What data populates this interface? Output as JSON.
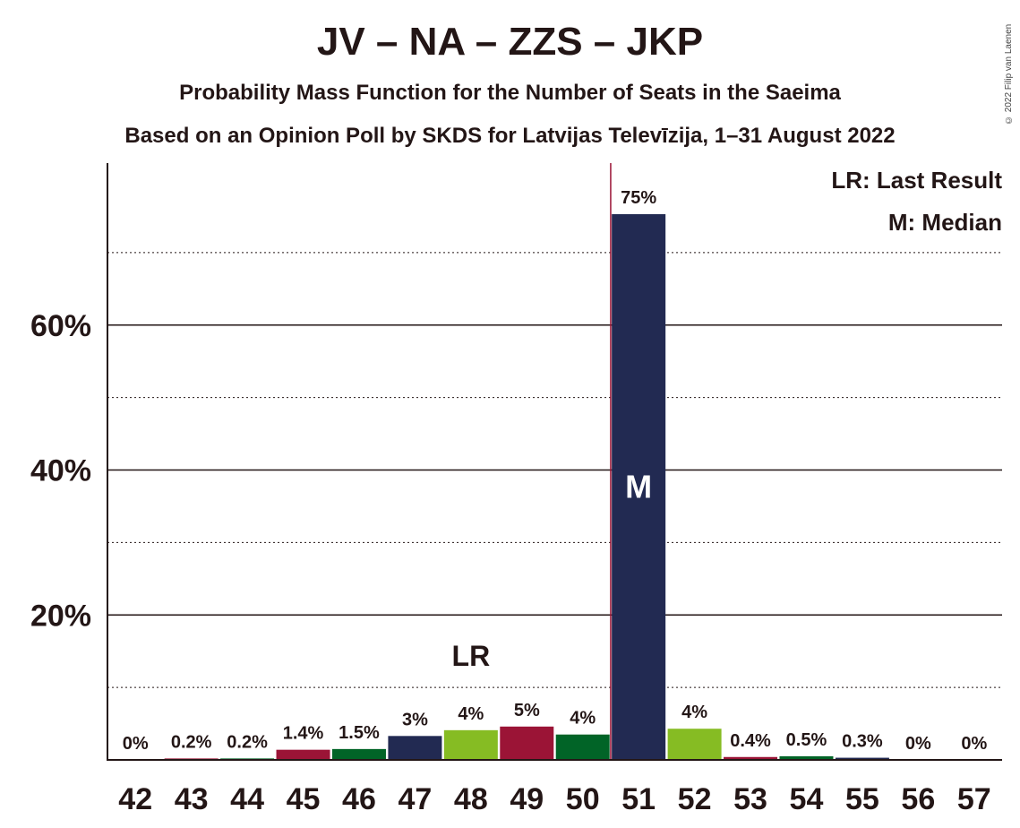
{
  "chart_data": {
    "type": "bar",
    "title": "JV – NA – ZZS – JKP",
    "subtitle": "Probability Mass Function for the Number of Seats in the Saeima",
    "subtitle2": "Based on an Opinion Poll by SKDS for Latvijas Televīzija, 1–31 August 2022",
    "copyright": "© 2022 Filip van Laenen",
    "legend": {
      "lr": "LR: Last Result",
      "m": "M: Median"
    },
    "categories": [
      42,
      43,
      44,
      45,
      46,
      47,
      48,
      49,
      50,
      51,
      52,
      53,
      54,
      55,
      56,
      57
    ],
    "values": [
      0,
      0.2,
      0.2,
      1.4,
      1.5,
      3.3,
      4.1,
      4.6,
      3.5,
      75.3,
      4.3,
      0.4,
      0.5,
      0.3,
      0,
      0
    ],
    "value_labels": [
      "0%",
      "0.2%",
      "0.2%",
      "1.4%",
      "1.5%",
      "3%",
      "4%",
      "5%",
      "4%",
      "75%",
      "4%",
      "0.4%",
      "0.5%",
      "0.3%",
      "0%",
      "0%"
    ],
    "bar_colors": [
      "#222a52",
      "#9b1436",
      "#016427",
      "#9b1436",
      "#016427",
      "#222a52",
      "#86bc23",
      "#9b1436",
      "#016427",
      "#222a52",
      "#86bc23",
      "#9b1436",
      "#016427",
      "#222a52",
      "#86bc23",
      "#9b1436"
    ],
    "ylim": [
      0,
      82
    ],
    "yticks": [
      20,
      40,
      60
    ],
    "ytick_labels": [
      "20%",
      "40%",
      "60%"
    ],
    "minor_grid": [
      10,
      30,
      50,
      70
    ],
    "last_result_seat": 48,
    "last_result_label": "LR",
    "median_seat": 51,
    "median_label": "M",
    "majority_line_after_seat": 50
  }
}
